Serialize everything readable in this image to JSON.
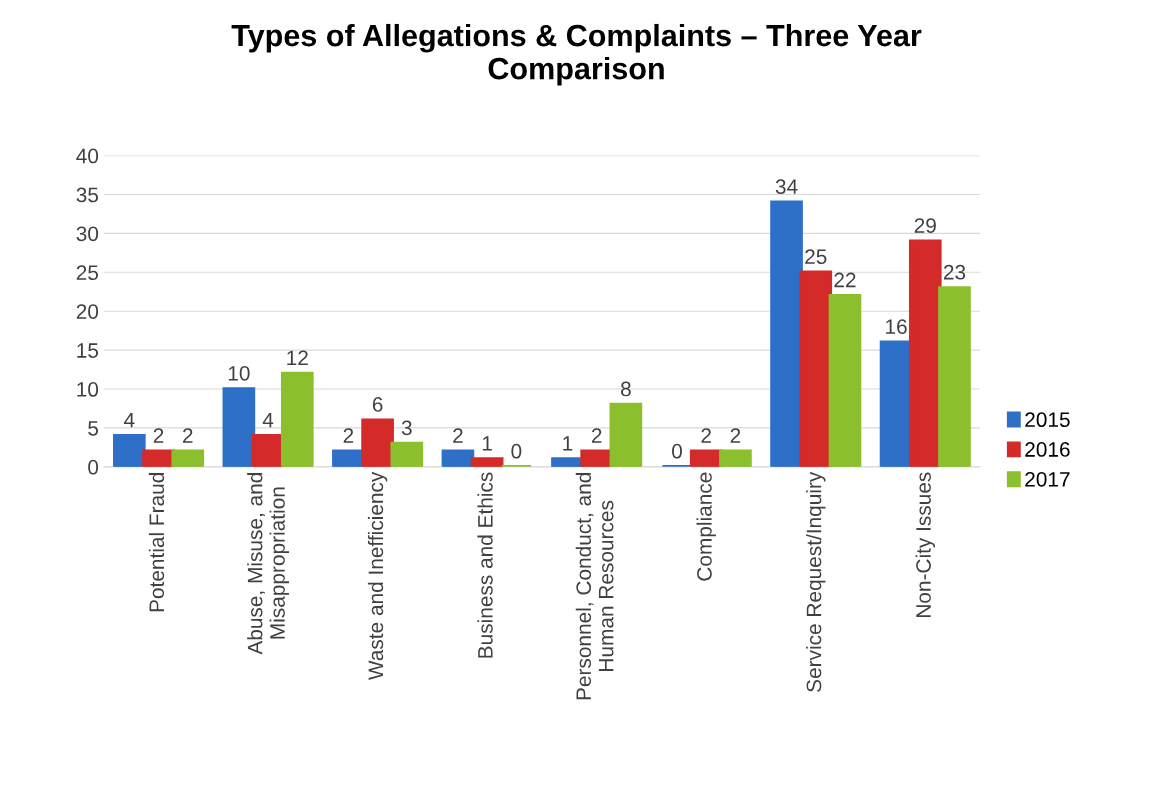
{
  "chart_data": {
    "type": "bar",
    "title": "Types of Allegations & Complaints – Three Year\nComparison",
    "categories": [
      "Potential Fraud",
      "Abuse, Misuse, and\nMisappropriation",
      "Waste and Inefficiency",
      "Business and Ethics",
      "Personnel, Conduct, and\nHuman Resources",
      "Compliance",
      "Service Request/Inquiry",
      "Non-City Issues"
    ],
    "series": [
      {
        "name": "2015",
        "color": "#2e6fc8",
        "values": [
          4,
          10,
          2,
          2,
          1,
          0,
          34,
          16
        ]
      },
      {
        "name": "2016",
        "color": "#d42a2a",
        "values": [
          2,
          4,
          6,
          1,
          2,
          2,
          25,
          29
        ]
      },
      {
        "name": "2017",
        "color": "#8cbf2e",
        "values": [
          2,
          12,
          3,
          0,
          8,
          2,
          22,
          23
        ]
      }
    ],
    "ylim": [
      0,
      40
    ],
    "yticks": [
      0,
      5,
      10,
      15,
      20,
      25,
      30,
      35,
      40
    ],
    "grid": "y",
    "legend": "right",
    "data_labels": true
  }
}
